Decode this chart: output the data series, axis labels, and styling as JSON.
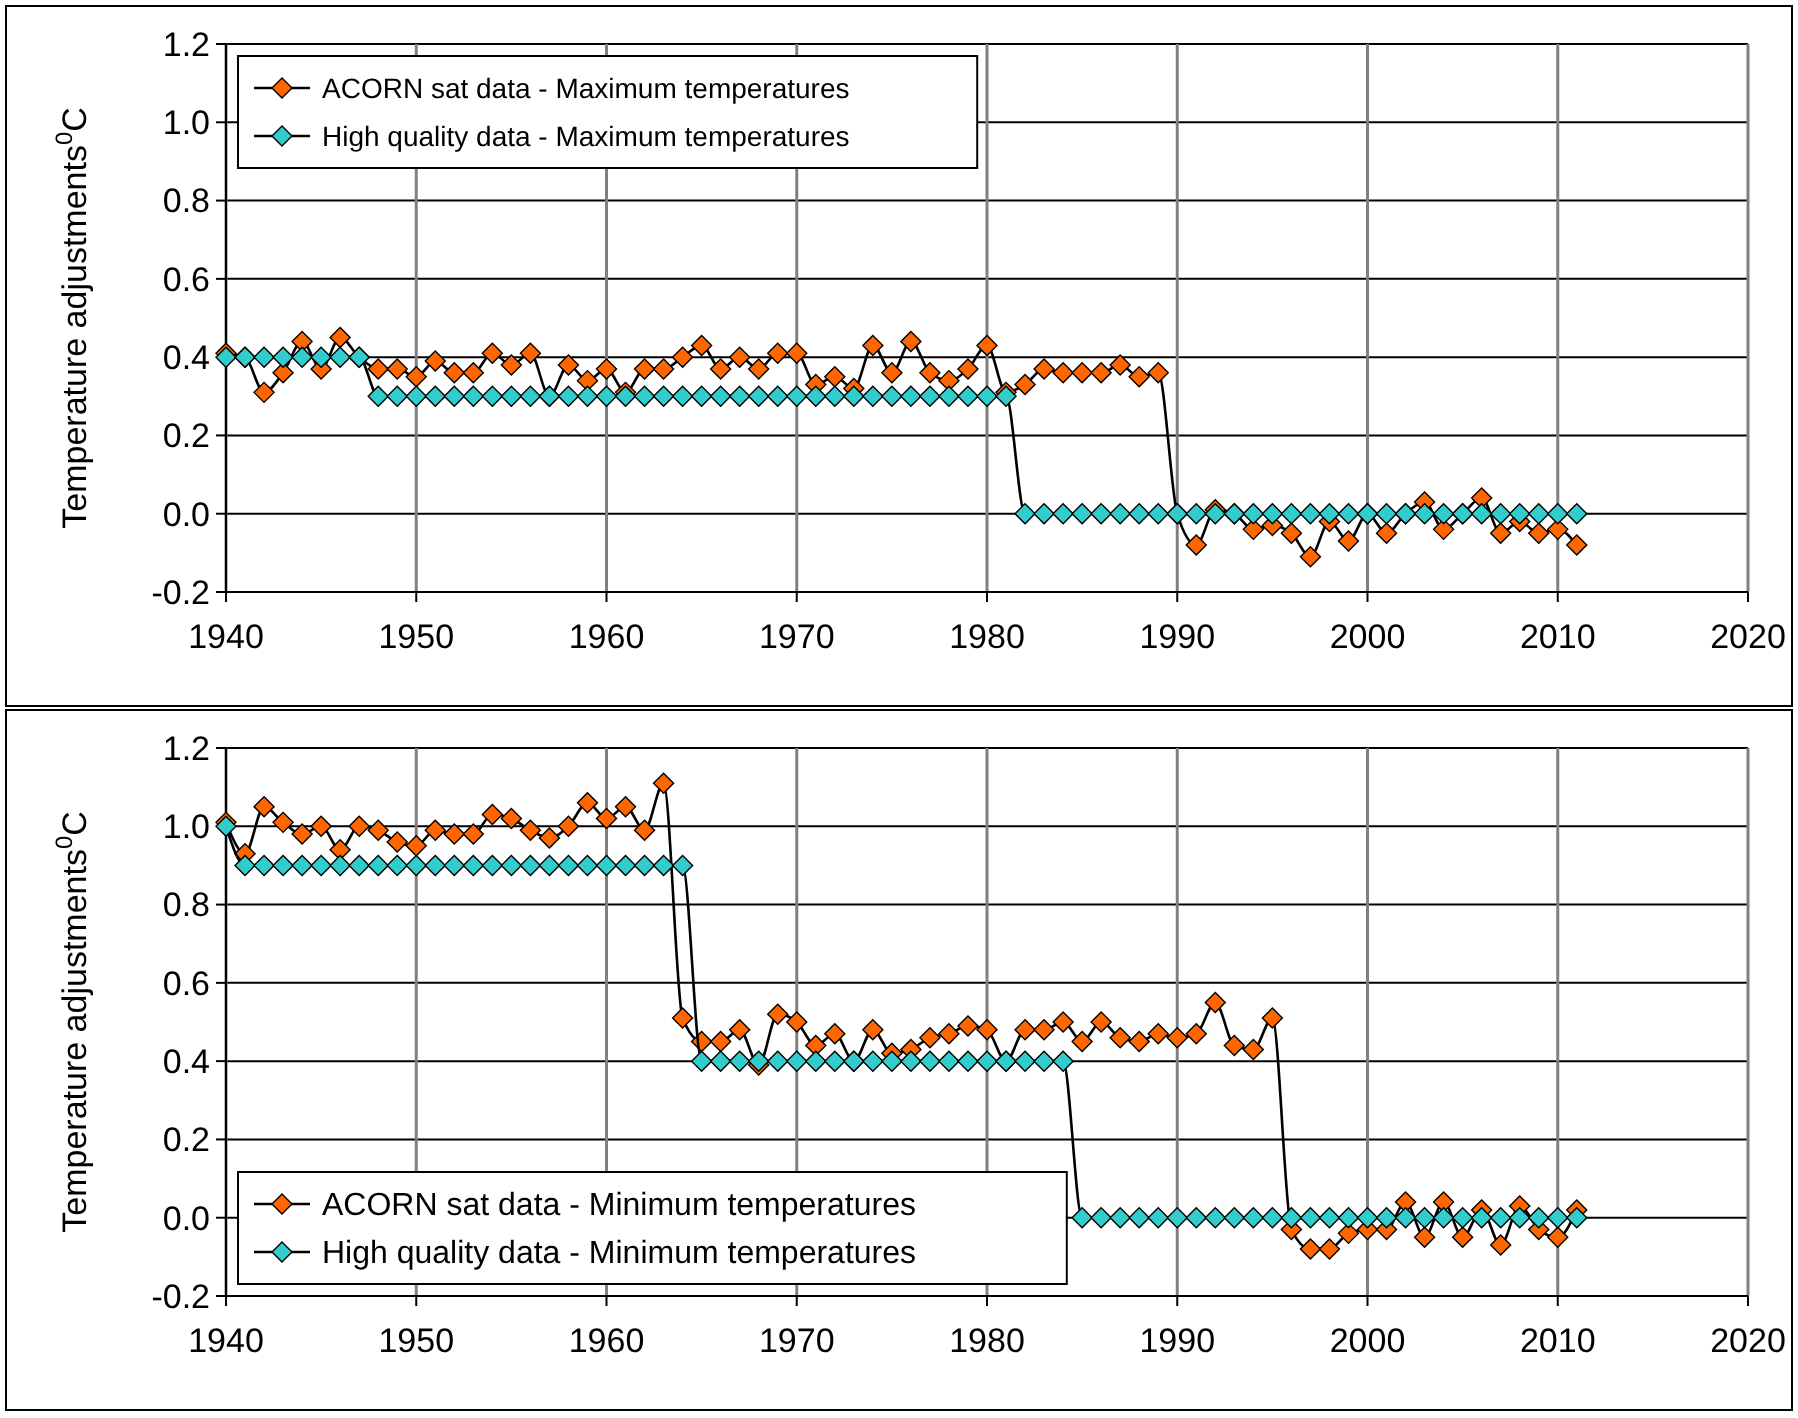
{
  "chart_data": [
    {
      "type": "line",
      "ylabel": "Temperature adjustments$^{0}$C",
      "xlim": [
        1940,
        2020
      ],
      "xticks": [
        1940,
        1950,
        1960,
        1970,
        1980,
        1990,
        2000,
        2010,
        2020
      ],
      "ylim": [
        -0.2,
        1.2
      ],
      "yticks": [
        {
          "value": -0.2,
          "label": "-0.2"
        },
        {
          "value": 0,
          "label": "0.0"
        },
        {
          "value": 0.2,
          "label": "0.2"
        },
        {
          "value": 0.4,
          "label": "0.4"
        },
        {
          "value": 0.6,
          "label": "0.6"
        },
        {
          "value": 0.8,
          "label": "0.8"
        },
        {
          "value": 1,
          "label": "1.0"
        },
        {
          "value": 1.2,
          "label": "1.2"
        }
      ],
      "grid": true,
      "legend": "top left",
      "marker": "diamond",
      "line_style": "solid",
      "x": [
        1940,
        1941,
        1942,
        1943,
        1944,
        1945,
        1946,
        1947,
        1948,
        1949,
        1950,
        1951,
        1952,
        1953,
        1954,
        1955,
        1956,
        1957,
        1958,
        1959,
        1960,
        1961,
        1962,
        1963,
        1964,
        1965,
        1966,
        1967,
        1968,
        1969,
        1970,
        1971,
        1972,
        1973,
        1974,
        1975,
        1976,
        1977,
        1978,
        1979,
        1980,
        1981,
        1982,
        1983,
        1984,
        1985,
        1986,
        1987,
        1988,
        1989,
        1990,
        1991,
        1992,
        1993,
        1994,
        1995,
        1996,
        1997,
        1998,
        1999,
        2000,
        2001,
        2002,
        2003,
        2004,
        2005,
        2006,
        2007,
        2008,
        2009,
        2010,
        2011
      ],
      "series": [
        {
          "name": "ACORN sat data - Maximum temperatures",
          "color": "#ff6600",
          "values": [
            0.41,
            0.4,
            0.31,
            0.36,
            0.44,
            0.37,
            0.45,
            0.4,
            0.37,
            0.37,
            0.35,
            0.39,
            0.36,
            0.36,
            0.41,
            0.38,
            0.41,
            0.3,
            0.38,
            0.34,
            0.37,
            0.31,
            0.37,
            0.37,
            0.4,
            0.43,
            0.37,
            0.4,
            0.37,
            0.41,
            0.41,
            0.33,
            0.35,
            0.32,
            0.43,
            0.36,
            0.44,
            0.36,
            0.34,
            0.37,
            0.43,
            0.31,
            0.33,
            0.37,
            0.36,
            0.36,
            0.36,
            0.38,
            0.35,
            0.36,
            0.0,
            -0.08,
            0.01,
            0.0,
            -0.04,
            -0.03,
            -0.05,
            -0.11,
            -0.02,
            -0.07,
            0.0,
            -0.05,
            0.0,
            0.03,
            -0.04,
            0.0,
            0.04,
            -0.05,
            -0.02,
            -0.05,
            -0.04,
            -0.08
          ]
        },
        {
          "name": "High quality data - Maximum temperatures",
          "color": "#33cccc",
          "values": [
            0.4,
            0.4,
            0.4,
            0.4,
            0.4,
            0.4,
            0.4,
            0.4,
            0.3,
            0.3,
            0.3,
            0.3,
            0.3,
            0.3,
            0.3,
            0.3,
            0.3,
            0.3,
            0.3,
            0.3,
            0.3,
            0.3,
            0.3,
            0.3,
            0.3,
            0.3,
            0.3,
            0.3,
            0.3,
            0.3,
            0.3,
            0.3,
            0.3,
            0.3,
            0.3,
            0.3,
            0.3,
            0.3,
            0.3,
            0.3,
            0.3,
            0.3,
            0,
            0,
            0,
            0,
            0,
            0,
            0,
            0,
            0,
            0,
            0,
            0,
            0,
            0,
            0,
            0,
            0,
            0,
            0,
            0,
            0,
            0,
            0,
            0,
            0,
            0,
            0,
            0,
            0,
            0
          ]
        }
      ]
    },
    {
      "type": "line",
      "ylabel": "Temperature adjustments$^{0}$C",
      "xlim": [
        1940,
        2020
      ],
      "xticks": [
        1940,
        1950,
        1960,
        1970,
        1980,
        1990,
        2000,
        2010,
        2020
      ],
      "ylim": [
        -0.2,
        1.2
      ],
      "yticks": [
        {
          "value": -0.2,
          "label": "-0.2"
        },
        {
          "value": 0,
          "label": "0.0"
        },
        {
          "value": 0.2,
          "label": "0.2"
        },
        {
          "value": 0.4,
          "label": "0.4"
        },
        {
          "value": 0.6,
          "label": "0.6"
        },
        {
          "value": 0.8,
          "label": "0.8"
        },
        {
          "value": 1,
          "label": "1.0"
        },
        {
          "value": 1.2,
          "label": "1.2"
        }
      ],
      "grid": true,
      "legend": "bottom left",
      "marker": "diamond",
      "line_style": "solid",
      "x": [
        1940,
        1941,
        1942,
        1943,
        1944,
        1945,
        1946,
        1947,
        1948,
        1949,
        1950,
        1951,
        1952,
        1953,
        1954,
        1955,
        1956,
        1957,
        1958,
        1959,
        1960,
        1961,
        1962,
        1963,
        1964,
        1965,
        1966,
        1967,
        1968,
        1969,
        1970,
        1971,
        1972,
        1973,
        1974,
        1975,
        1976,
        1977,
        1978,
        1979,
        1980,
        1981,
        1982,
        1983,
        1984,
        1985,
        1986,
        1987,
        1988,
        1989,
        1990,
        1991,
        1992,
        1993,
        1994,
        1995,
        1996,
        1997,
        1998,
        1999,
        2000,
        2001,
        2002,
        2003,
        2004,
        2005,
        2006,
        2007,
        2008,
        2009,
        2010,
        2011
      ],
      "series": [
        {
          "name": "ACORN sat data - Minimum temperatures",
          "color": "#ff6600",
          "values": [
            1.01,
            0.93,
            1.05,
            1.01,
            0.98,
            1.0,
            0.94,
            1.0,
            0.99,
            0.96,
            0.95,
            0.99,
            0.98,
            0.98,
            1.03,
            1.02,
            0.99,
            0.97,
            1.0,
            1.06,
            1.02,
            1.05,
            0.99,
            1.11,
            0.51,
            0.45,
            0.45,
            0.48,
            0.39,
            0.52,
            0.5,
            0.44,
            0.47,
            0.4,
            0.48,
            0.42,
            0.43,
            0.46,
            0.47,
            0.49,
            0.48,
            0.4,
            0.48,
            0.48,
            0.5,
            0.45,
            0.5,
            0.46,
            0.45,
            0.47,
            0.46,
            0.47,
            0.55,
            0.44,
            0.43,
            0.51,
            -0.03,
            -0.08,
            -0.08,
            -0.04,
            -0.03,
            -0.03,
            0.04,
            -0.05,
            0.04,
            -0.05,
            0.02,
            -0.07,
            0.03,
            -0.03,
            -0.05,
            0.02
          ]
        },
        {
          "name": "High quality data - Minimum temperatures",
          "color": "#33cccc",
          "values": [
            1.0,
            0.9,
            0.9,
            0.9,
            0.9,
            0.9,
            0.9,
            0.9,
            0.9,
            0.9,
            0.9,
            0.9,
            0.9,
            0.9,
            0.9,
            0.9,
            0.9,
            0.9,
            0.9,
            0.9,
            0.9,
            0.9,
            0.9,
            0.9,
            0.9,
            0.4,
            0.4,
            0.4,
            0.4,
            0.4,
            0.4,
            0.4,
            0.4,
            0.4,
            0.4,
            0.4,
            0.4,
            0.4,
            0.4,
            0.4,
            0.4,
            0.4,
            0.4,
            0.4,
            0.4,
            0,
            0,
            0,
            0,
            0,
            0,
            0,
            0,
            0,
            0,
            0,
            0,
            0,
            0,
            0,
            0,
            0,
            0,
            0,
            0,
            0,
            0,
            0,
            0,
            0,
            0,
            0
          ]
        }
      ]
    }
  ]
}
